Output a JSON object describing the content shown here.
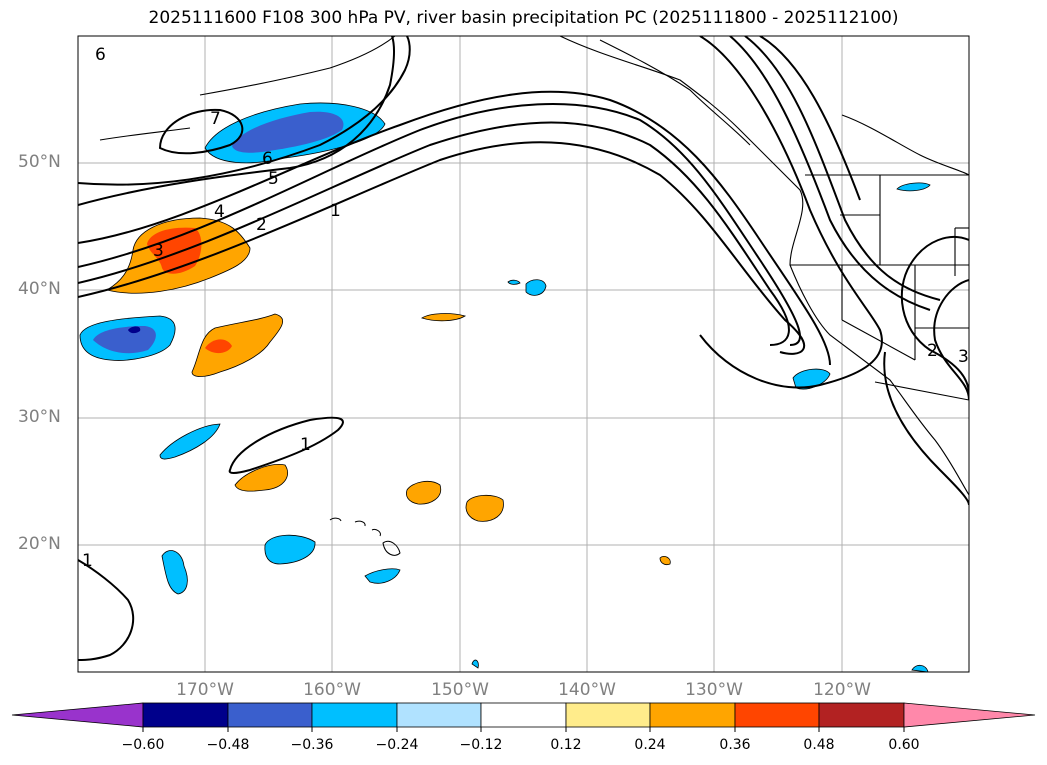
{
  "title": "2025111600 F108 300 hPa PV, river basin precipitation PC (2025111800 - 2025112100)",
  "lat_labels": [
    "50°N",
    "40°N",
    "30°N",
    "20°N"
  ],
  "lon_labels": [
    "170°W",
    "160°W",
    "150°W",
    "140°W",
    "130°W",
    "120°W"
  ],
  "contour_labels": [
    "6",
    "7",
    "6",
    "5",
    "4",
    "3",
    "2",
    "1",
    "1",
    "1",
    "2",
    "3"
  ],
  "colorbar": {
    "ticks": [
      "−0.60",
      "−0.48",
      "−0.36",
      "−0.24",
      "−0.12",
      "0.12",
      "0.24",
      "0.36",
      "0.48",
      "0.60"
    ],
    "colors": [
      "#9933cc",
      "#00008b",
      "#3a5fcd",
      "#00bfff",
      "#b0e2ff",
      "#ffffff",
      "#ffec8b",
      "#ffa500",
      "#ff4500",
      "#b22222",
      "#ff88aa"
    ]
  }
}
